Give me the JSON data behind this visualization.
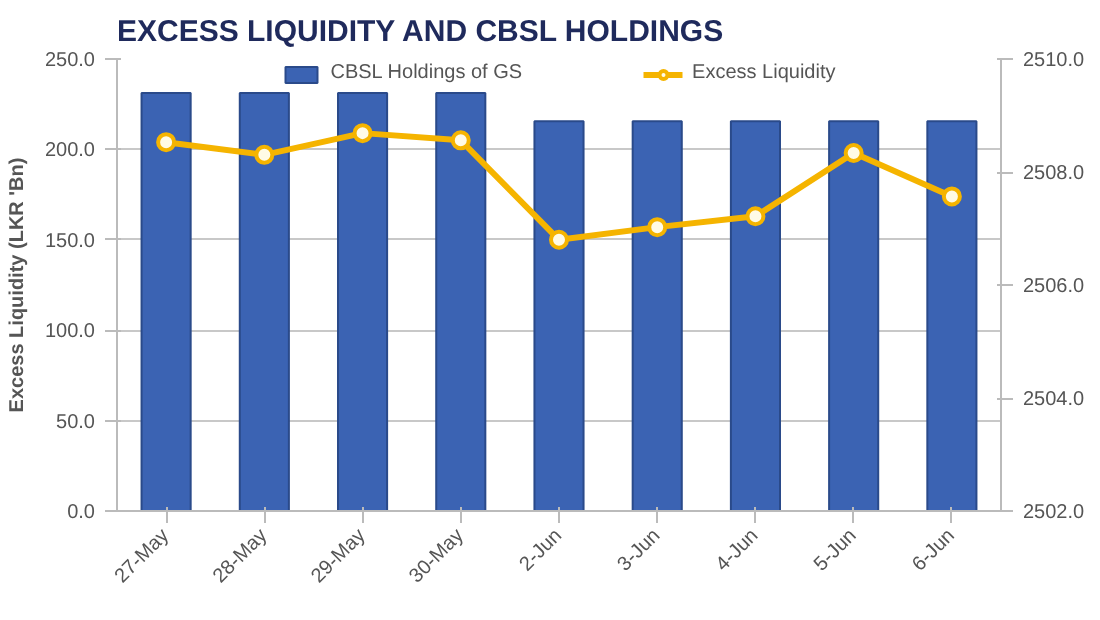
{
  "chart_data": {
    "type": "bar",
    "title": "EXCESS LIQUIDITY AND CBSL HOLDINGS",
    "ylabel": "Excess Liquidity (LKR 'Bn)",
    "categories": [
      "27-May",
      "28-May",
      "29-May",
      "30-May",
      "2-Jun",
      "3-Jun",
      "4-Jun",
      "5-Jun",
      "6-Jun"
    ],
    "series": [
      {
        "name": "CBSL Holdings of GS",
        "axis": "y2",
        "color": "#3b63b3",
        "values": [
          2509.4,
          2509.4,
          2509.4,
          2509.4,
          2508.9,
          2508.9,
          2508.9,
          2508.9,
          2508.9
        ]
      },
      {
        "name": "Excess Liquidity",
        "type": "line",
        "axis": "y",
        "color": "#f5b400",
        "marker": "circle",
        "values": [
          204,
          197,
          209,
          205,
          150,
          157,
          163,
          198,
          174
        ]
      }
    ],
    "ylim": [
      0,
      250
    ],
    "yticks": [
      {
        "value": 0,
        "label": "0.0"
      },
      {
        "value": 50,
        "label": "50.0"
      },
      {
        "value": 100,
        "label": "100.0"
      },
      {
        "value": 150,
        "label": "150.0"
      },
      {
        "value": 200,
        "label": "200.0"
      },
      {
        "value": 250,
        "label": "250.0"
      }
    ],
    "y2lim": [
      2502,
      2510
    ],
    "y2ticks": [
      {
        "value": 2502,
        "label": "2502.0"
      },
      {
        "value": 2504,
        "label": "2504.0"
      },
      {
        "value": 2506,
        "label": "2506.0"
      },
      {
        "value": 2508,
        "label": "2508.0"
      },
      {
        "value": 2510,
        "label": "2510.0"
      }
    ],
    "grid": "y",
    "legend": "top"
  }
}
